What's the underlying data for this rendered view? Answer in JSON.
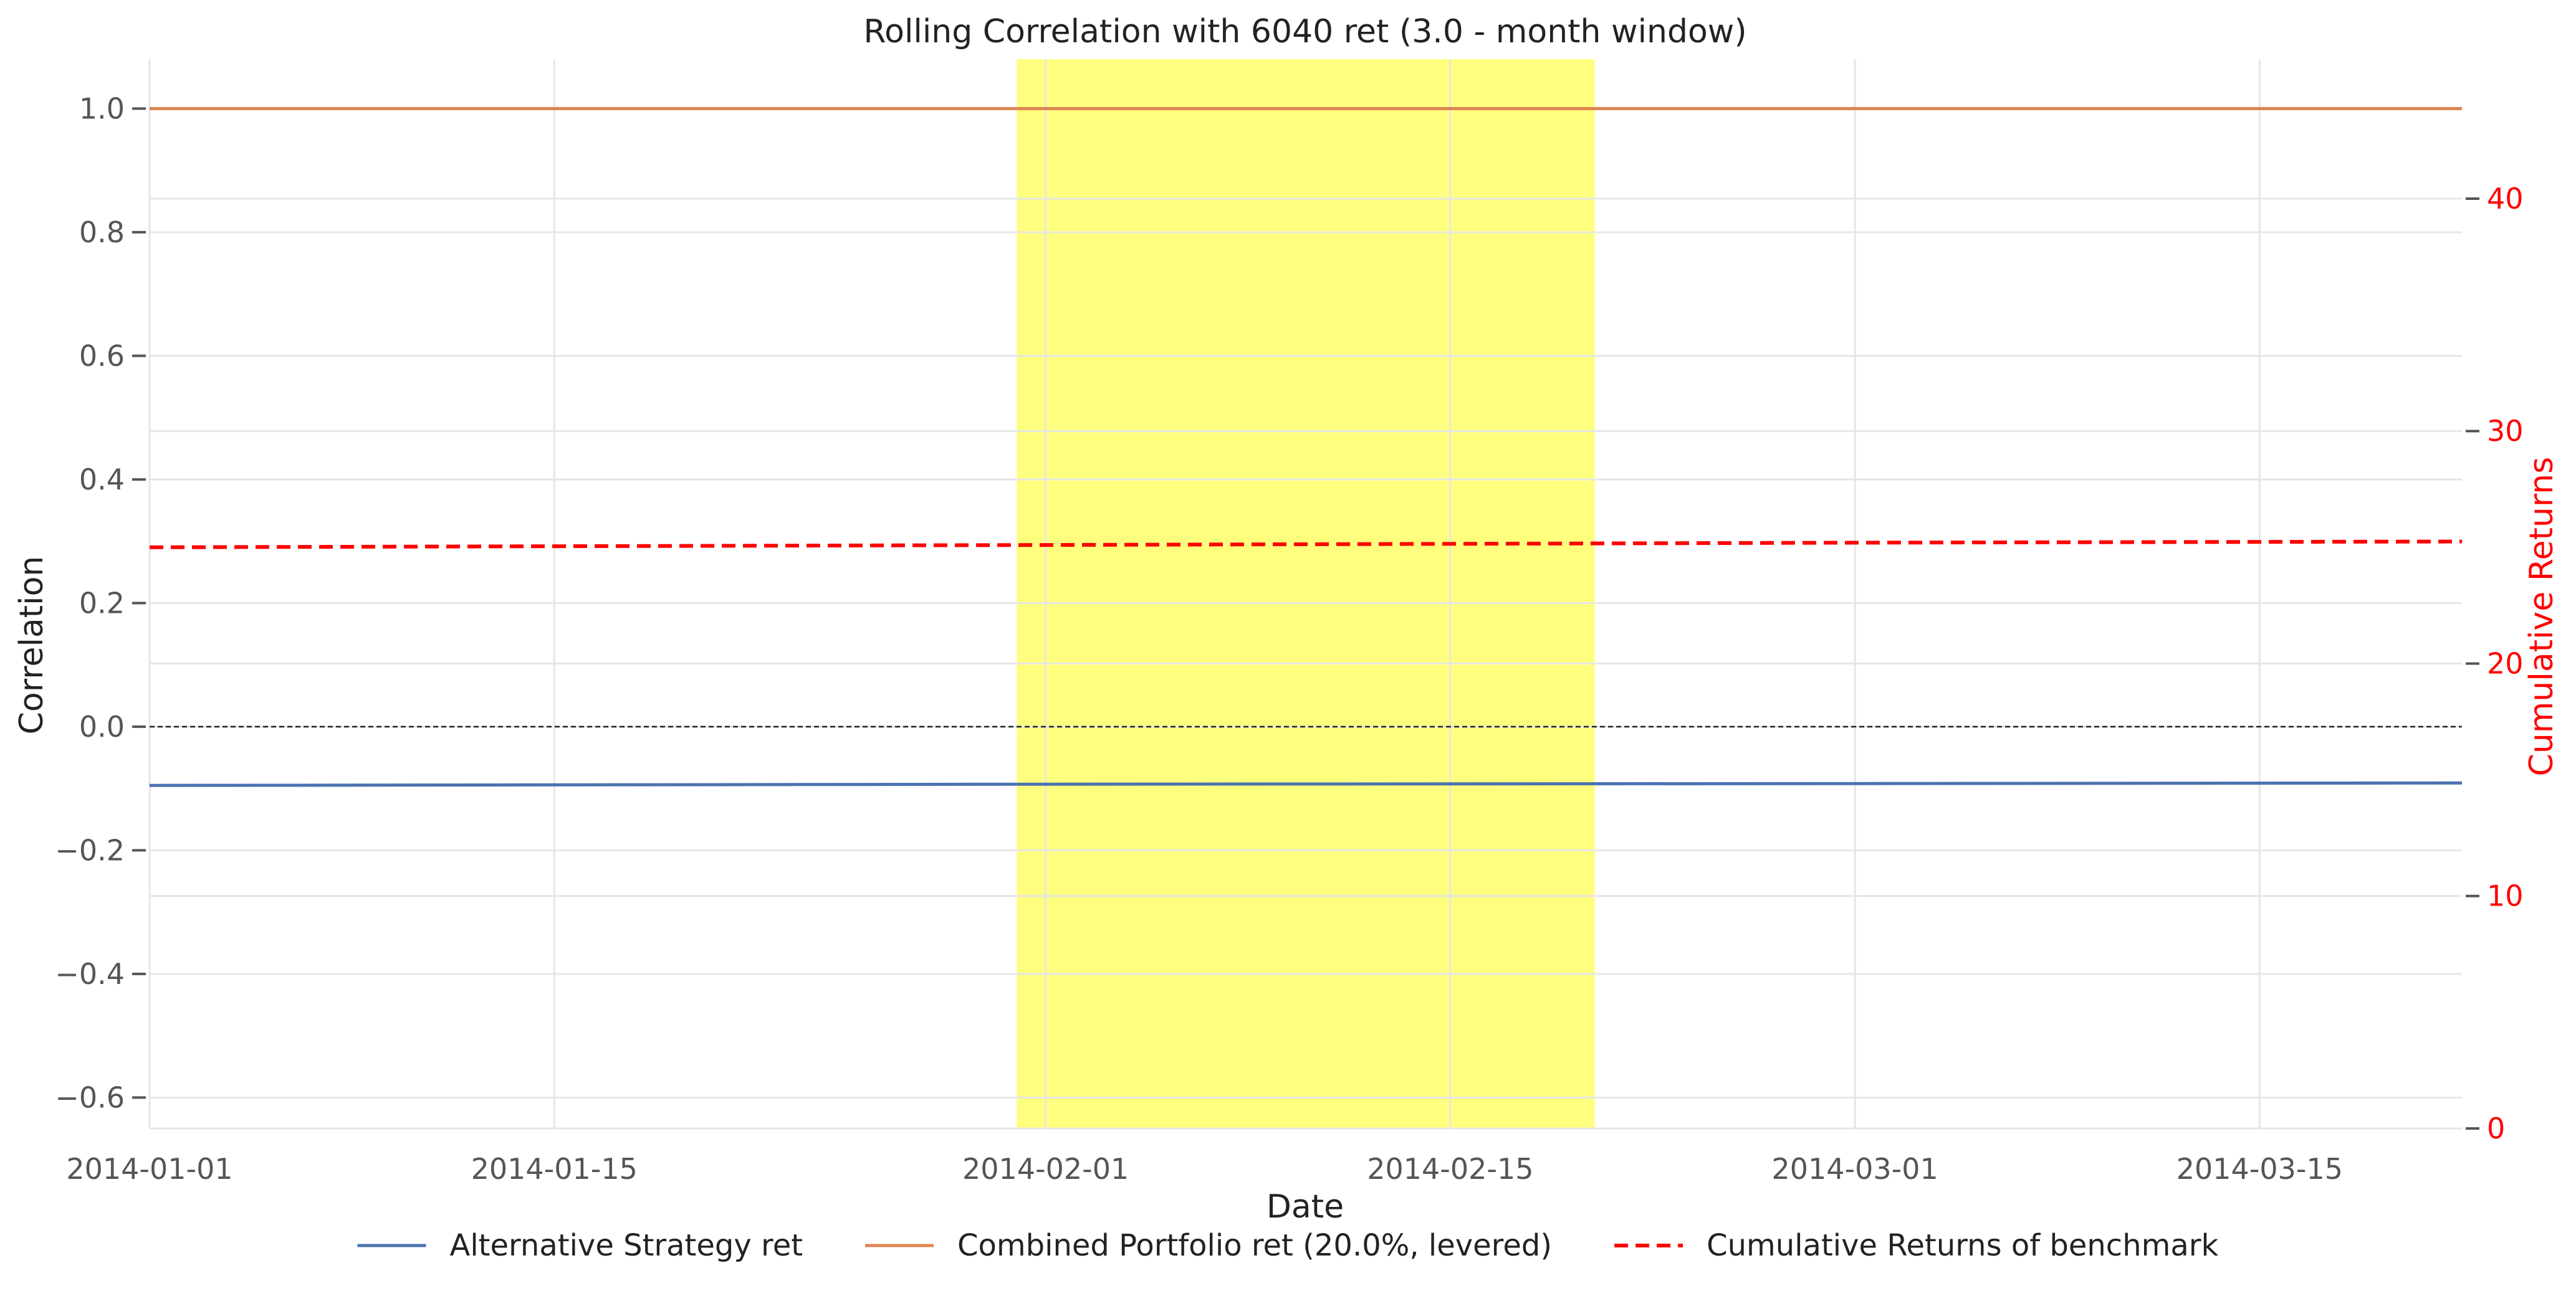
{
  "chart_data": {
    "type": "line",
    "title": "Rolling Correlation with 6040 ret (3.0 - month window)",
    "xlabel": "Date",
    "ylabel": "Correlation",
    "y2label": "Cumulative Returns",
    "x_range": [
      "2014-01-01",
      "2014-03-22"
    ],
    "x_ticks": [
      "2014-01-01",
      "2014-01-15",
      "2014-02-01",
      "2014-02-15",
      "2014-03-01",
      "2014-03-15"
    ],
    "ylim": [
      -0.65,
      1.08
    ],
    "y_ticks": [
      1.0,
      0.8,
      0.6,
      0.4,
      0.2,
      0.0,
      -0.2,
      -0.4,
      -0.6
    ],
    "y_tick_labels": [
      "1.0",
      "0.8",
      "0.6",
      "0.4",
      "0.2",
      "0.0",
      "−0.2",
      "−0.4",
      "−0.6"
    ],
    "y2lim": [
      0,
      46
    ],
    "y2_ticks": [
      40,
      30,
      20,
      10,
      0
    ],
    "y2_tick_labels": [
      "40",
      "30",
      "20",
      "10",
      "0"
    ],
    "highlight": {
      "start": "2014-01-31",
      "end": "2014-02-20",
      "color": "#ffff00"
    },
    "zero_line": 0.0,
    "grid": true,
    "legend_position": "bottom",
    "series": [
      {
        "name": "Alternative Strategy ret",
        "axis": "left",
        "style": "solid",
        "color": "#4c72b0",
        "points": [
          [
            "2014-01-01",
            -0.095
          ],
          [
            "2014-02-01",
            -0.093
          ],
          [
            "2014-03-01",
            -0.092
          ],
          [
            "2014-03-22",
            -0.091
          ]
        ]
      },
      {
        "name": "Combined Portfolio ret (20.0%, levered)",
        "axis": "left",
        "style": "solid",
        "color": "#dd8452",
        "points": [
          [
            "2014-01-01",
            1.0
          ],
          [
            "2014-03-22",
            1.0
          ]
        ]
      },
      {
        "name": "Cumulative Returns of benchmark",
        "axis": "right",
        "style": "dashed",
        "color": "#ff0000",
        "points": [
          [
            "2014-01-01",
            25.0
          ],
          [
            "2014-02-01",
            25.1
          ],
          [
            "2014-03-01",
            25.2
          ],
          [
            "2014-03-22",
            25.25
          ]
        ]
      }
    ]
  }
}
